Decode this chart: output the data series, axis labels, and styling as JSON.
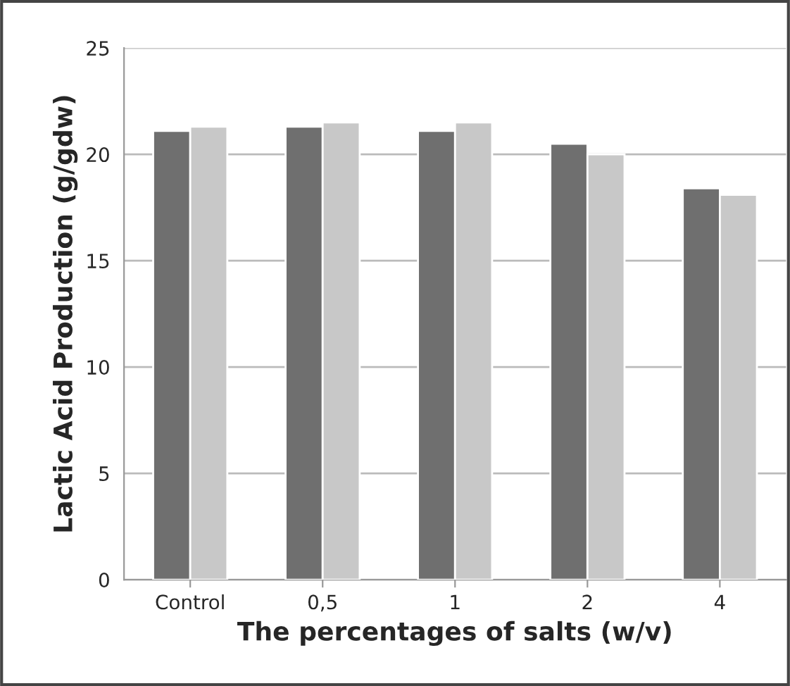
{
  "chart_data": {
    "type": "bar",
    "xlabel": "The percentages of salts (w/v)",
    "ylabel": "Lactic Acid Production (g/gdw)",
    "categories": [
      "Control",
      "0,5",
      "1",
      "2",
      "4"
    ],
    "series": [
      {
        "color": "#6f6f6f",
        "values": [
          21.1,
          21.3,
          21.1,
          20.5,
          18.4
        ]
      },
      {
        "color": "#c8c8c8",
        "values": [
          21.3,
          21.5,
          21.5,
          20.0,
          18.1
        ]
      }
    ],
    "ylim": [
      0,
      25
    ],
    "yticks": [
      0,
      5,
      10,
      15,
      20,
      25
    ],
    "grid": "y",
    "legend": false
  }
}
